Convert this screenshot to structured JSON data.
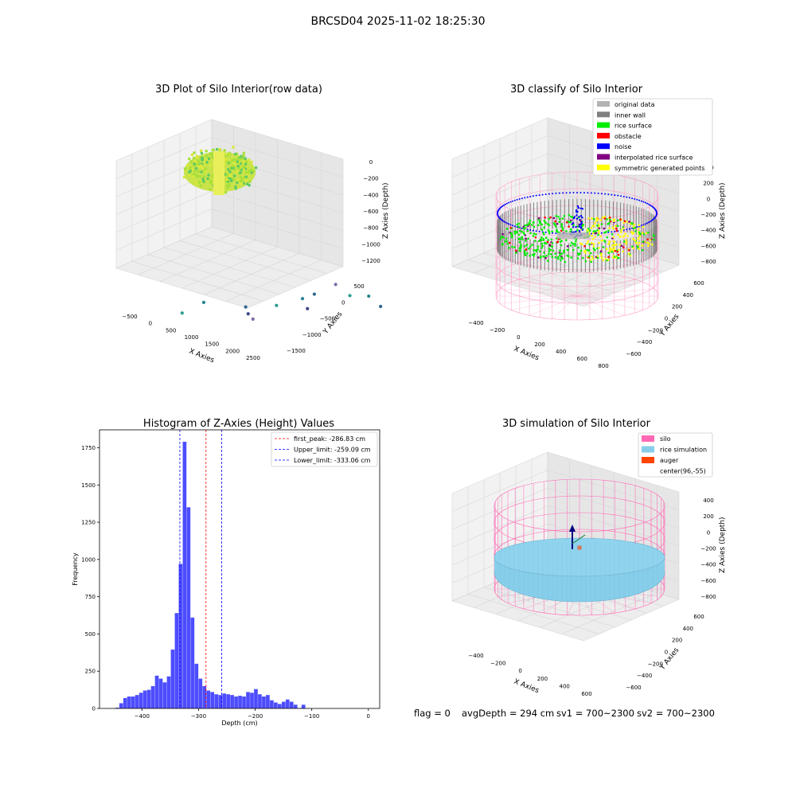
{
  "figure_title": "BRCSD04 2025-11-02 18:25:30",
  "chart_data": [
    {
      "type": "scatter",
      "title": "3D Plot of Silo Interior(row data)",
      "xlabel": "X Axies",
      "ylabel": "Y Axies",
      "zlabel": "Z Axies (Depth)",
      "x_ticks": [
        "−500",
        "0",
        "500",
        "1000",
        "1500",
        "2000",
        "2500"
      ],
      "y_ticks": [
        "500",
        "0",
        "−500",
        "−1000",
        "−1500"
      ],
      "z_ticks": [
        "0",
        "−200",
        "−400",
        "−600",
        "−800",
        "−1000",
        "−1200"
      ],
      "cluster_color": "#c9e34a",
      "outlier_points": [
        {
          "x": 60,
          "y": -1100,
          "z": -1050
        },
        {
          "x": 220,
          "y": -800,
          "z": -1000
        },
        {
          "x": 900,
          "y": -600,
          "z": -1000
        },
        {
          "x": 1000,
          "y": -650,
          "z": -1050
        },
        {
          "x": 1100,
          "y": -650,
          "z": -1100
        },
        {
          "x": 1300,
          "y": -350,
          "z": -1000
        },
        {
          "x": 1600,
          "y": -100,
          "z": -950
        },
        {
          "x": 1750,
          "y": 0,
          "z": -900
        },
        {
          "x": 1800,
          "y": -200,
          "z": -1000
        },
        {
          "x": 2000,
          "y": 200,
          "z": -800
        },
        {
          "x": 2200,
          "y": 300,
          "z": -950
        },
        {
          "x": 2400,
          "y": 500,
          "z": -1000
        },
        {
          "x": 2550,
          "y": 600,
          "z": -1150
        }
      ]
    },
    {
      "type": "scatter",
      "title": "3D classify of Silo Interior",
      "xlabel": "X Axies",
      "ylabel": "Y Axies",
      "zlabel": "Z Axies (Depth)",
      "x_ticks": [
        "−400",
        "−200",
        "0",
        "200",
        "400",
        "600",
        "800"
      ],
      "y_ticks": [
        "600",
        "400",
        "200",
        "0",
        "−200",
        "−400",
        "−600"
      ],
      "z_ticks": [
        "400",
        "200",
        "0",
        "−200",
        "−400",
        "−600",
        "−800"
      ],
      "legend": [
        {
          "label": "original data",
          "color": "#b3b3b3"
        },
        {
          "label": "inner wall",
          "color": "#808080"
        },
        {
          "label": "rice surface",
          "color": "#00ee00"
        },
        {
          "label": "obstacle",
          "color": "#ff0000"
        },
        {
          "label": "noise",
          "color": "#0000ff"
        },
        {
          "label": "interpolated rice surface",
          "color": "#800080"
        },
        {
          "label": "symmetric generated points",
          "color": "#ffff00"
        }
      ]
    },
    {
      "type": "bar",
      "title": "Histogram of Z-Axies (Height) Values",
      "xlabel": "Depth (cm)",
      "ylabel": "Frequency",
      "bar_color": "#4d4dff",
      "bin_width": 7,
      "bin_start": -447,
      "values": [
        5,
        35,
        70,
        80,
        80,
        90,
        105,
        120,
        125,
        150,
        220,
        200,
        175,
        215,
        395,
        640,
        970,
        1790,
        1350,
        610,
        300,
        200,
        150,
        120,
        110,
        95,
        90,
        100,
        95,
        90,
        80,
        85,
        80,
        110,
        105,
        130,
        95,
        80,
        90,
        55,
        40,
        30,
        45,
        60,
        45,
        25,
        3,
        25
      ],
      "xlim": [
        -475,
        20
      ],
      "ylim": [
        0,
        1870
      ],
      "x_ticks": [
        -400,
        -300,
        -200,
        -100,
        0
      ],
      "x_tick_labels": [
        "−400",
        "−300",
        "−200",
        "−100",
        "0"
      ],
      "y_ticks": [
        0,
        250,
        500,
        750,
        1000,
        1250,
        1500,
        1750
      ],
      "lines": [
        {
          "label": "first_peak: -286.83 cm",
          "x": -286.83,
          "color": "#ff0000"
        },
        {
          "label": "Upper_limit: -259.09 cm",
          "x": -259.09,
          "color": "#0000ff"
        },
        {
          "label": "Lower_limit: -333.06 cm",
          "x": -333.06,
          "color": "#0000ff"
        }
      ]
    },
    {
      "type": "scatter",
      "title": "3D simulation of Silo Interior",
      "xlabel": "X Axies",
      "ylabel": "Y Axies",
      "zlabel": "Z Axies (Depth)",
      "x_ticks": [
        "−400",
        "−200",
        "0",
        "200",
        "400",
        "600"
      ],
      "y_ticks": [
        "600",
        "400",
        "200",
        "0",
        "−200",
        "−400",
        "−600"
      ],
      "z_ticks": [
        "400",
        "200",
        "0",
        "−200",
        "−400",
        "−600",
        "−800"
      ],
      "legend": [
        {
          "label": "silo",
          "color": "#ff69b4"
        },
        {
          "label": "rice simulation",
          "color": "#87ceeb"
        },
        {
          "label": "auger",
          "color": "#ff4500"
        },
        {
          "label": "center(96,-55)",
          "color": ""
        }
      ]
    }
  ],
  "status": {
    "flag": "flag = 0",
    "avg_depth": "avgDepth = 294 cm",
    "sv1": "sv1 = 700~2300",
    "sv2": "sv2 = 700~2300"
  }
}
